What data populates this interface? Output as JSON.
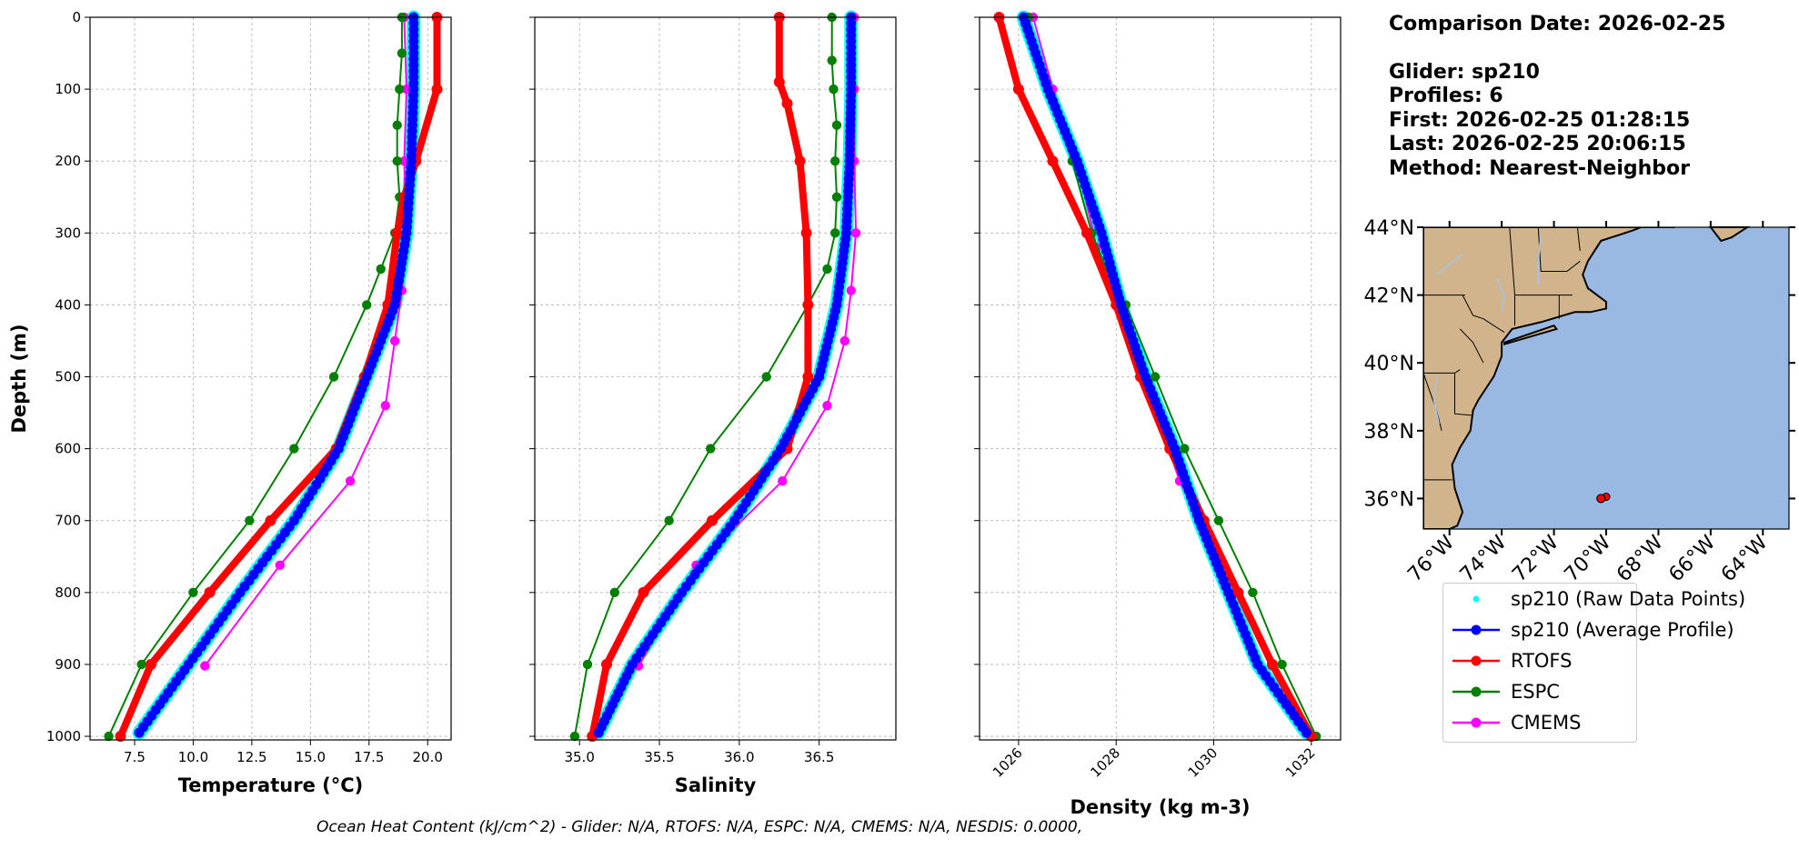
{
  "chart_data": [
    {
      "type": "line",
      "id": "temperature",
      "xlabel": "Temperature (°C)",
      "ylabel": "Depth (m)",
      "xlim": [
        5.6,
        21.0
      ],
      "ylim": [
        1005,
        0
      ],
      "xticks": [
        "7.5",
        "10.0",
        "12.5",
        "15.0",
        "17.5",
        "20.0"
      ],
      "xtick_values": [
        7.5,
        10.0,
        12.5,
        15.0,
        17.5,
        20.0
      ],
      "yticks": [
        "0",
        "100",
        "200",
        "300",
        "400",
        "500",
        "600",
        "700",
        "800",
        "900",
        "1000"
      ],
      "ytick_values": [
        0,
        100,
        200,
        300,
        400,
        500,
        600,
        700,
        800,
        900,
        1000
      ],
      "grid": true,
      "series": [
        {
          "name": "sp210 (Average Profile)",
          "color": "#0000ff",
          "style": "dense",
          "points": [
            [
              19.4,
              0
            ],
            [
              19.4,
              100
            ],
            [
              19.3,
              200
            ],
            [
              19.1,
              300
            ],
            [
              18.6,
              400
            ],
            [
              17.4,
              500
            ],
            [
              16.2,
              600
            ],
            [
              14.3,
              700
            ],
            [
              12.0,
              800
            ],
            [
              9.8,
              900
            ],
            [
              7.7,
              995
            ]
          ]
        },
        {
          "name": "RTOFS",
          "color": "#ff0000",
          "style": "thick",
          "points": [
            [
              20.4,
              0
            ],
            [
              20.4,
              100
            ],
            [
              19.5,
              200
            ],
            [
              19.0,
              250
            ],
            [
              18.7,
              300
            ],
            [
              18.3,
              400
            ],
            [
              17.3,
              500
            ],
            [
              16.1,
              600
            ],
            [
              13.3,
              700
            ],
            [
              10.7,
              800
            ],
            [
              8.2,
              900
            ],
            [
              6.9,
              1000
            ]
          ]
        },
        {
          "name": "ESPC",
          "color": "#008000",
          "style": "marker",
          "points": [
            [
              18.9,
              0
            ],
            [
              18.9,
              50
            ],
            [
              18.8,
              100
            ],
            [
              18.7,
              150
            ],
            [
              18.7,
              200
            ],
            [
              18.8,
              250
            ],
            [
              18.6,
              300
            ],
            [
              18.0,
              350
            ],
            [
              17.4,
              400
            ],
            [
              16.0,
              500
            ],
            [
              14.3,
              600
            ],
            [
              12.4,
              700
            ],
            [
              10.0,
              800
            ],
            [
              7.8,
              900
            ],
            [
              6.4,
              1000
            ]
          ]
        },
        {
          "name": "CMEMS",
          "color": "#ff00ff",
          "style": "marker",
          "points": [
            [
              19.0,
              0
            ],
            [
              19.1,
              100
            ],
            [
              19.0,
              200
            ],
            [
              19.1,
              300
            ],
            [
              18.9,
              380
            ],
            [
              18.6,
              450
            ],
            [
              18.2,
              540
            ],
            [
              16.7,
              645
            ],
            [
              13.7,
              762
            ],
            [
              10.5,
              902
            ]
          ]
        }
      ]
    },
    {
      "type": "line",
      "id": "salinity",
      "xlabel": "Salinity",
      "xlim": [
        34.72,
        36.98
      ],
      "ylim": [
        1005,
        0
      ],
      "xticks": [
        "35.0",
        "35.5",
        "36.0",
        "36.5"
      ],
      "xtick_values": [
        35.0,
        35.5,
        36.0,
        36.5
      ],
      "grid": true,
      "series": [
        {
          "name": "sp210 (Average Profile)",
          "color": "#0000ff",
          "style": "dense",
          "points": [
            [
              36.7,
              0
            ],
            [
              36.7,
              100
            ],
            [
              36.69,
              200
            ],
            [
              36.67,
              300
            ],
            [
              36.61,
              400
            ],
            [
              36.5,
              500
            ],
            [
              36.26,
              600
            ],
            [
              35.97,
              700
            ],
            [
              35.64,
              800
            ],
            [
              35.33,
              900
            ],
            [
              35.12,
              995
            ]
          ]
        },
        {
          "name": "RTOFS",
          "color": "#ff0000",
          "style": "thick",
          "points": [
            [
              36.25,
              0
            ],
            [
              36.25,
              90
            ],
            [
              36.3,
              120
            ],
            [
              36.38,
              200
            ],
            [
              36.42,
              300
            ],
            [
              36.43,
              400
            ],
            [
              36.43,
              500
            ],
            [
              36.3,
              600
            ],
            [
              35.83,
              700
            ],
            [
              35.4,
              800
            ],
            [
              35.17,
              900
            ],
            [
              35.08,
              1000
            ]
          ]
        },
        {
          "name": "ESPC",
          "color": "#008000",
          "style": "marker",
          "points": [
            [
              36.58,
              0
            ],
            [
              36.58,
              60
            ],
            [
              36.59,
              100
            ],
            [
              36.61,
              150
            ],
            [
              36.6,
              200
            ],
            [
              36.61,
              250
            ],
            [
              36.6,
              300
            ],
            [
              36.55,
              350
            ],
            [
              36.43,
              400
            ],
            [
              36.17,
              500
            ],
            [
              35.82,
              600
            ],
            [
              35.56,
              700
            ],
            [
              35.22,
              800
            ],
            [
              35.05,
              900
            ],
            [
              34.97,
              1000
            ]
          ]
        },
        {
          "name": "CMEMS",
          "color": "#ff00ff",
          "style": "marker",
          "points": [
            [
              36.72,
              0
            ],
            [
              36.72,
              100
            ],
            [
              36.72,
              200
            ],
            [
              36.73,
              300
            ],
            [
              36.7,
              380
            ],
            [
              36.66,
              450
            ],
            [
              36.55,
              540
            ],
            [
              36.27,
              645
            ],
            [
              35.73,
              762
            ],
            [
              35.37,
              902
            ]
          ]
        }
      ]
    },
    {
      "type": "line",
      "id": "density",
      "xlabel": "Density (kg m-3)",
      "xlim": [
        1025.2,
        1032.6
      ],
      "ylim": [
        1005,
        0
      ],
      "xticks": [
        "1026",
        "1028",
        "1030",
        "1032"
      ],
      "xtick_values": [
        1026,
        1028,
        1030,
        1032
      ],
      "grid": true,
      "series": [
        {
          "name": "sp210 (Average Profile)",
          "color": "#0000ff",
          "style": "dense",
          "points": [
            [
              1026.1,
              0
            ],
            [
              1026.6,
              100
            ],
            [
              1027.2,
              200
            ],
            [
              1027.7,
              300
            ],
            [
              1028.1,
              400
            ],
            [
              1028.6,
              500
            ],
            [
              1029.2,
              600
            ],
            [
              1029.7,
              700
            ],
            [
              1030.3,
              800
            ],
            [
              1030.9,
              900
            ],
            [
              1031.9,
              995
            ]
          ]
        },
        {
          "name": "RTOFS",
          "color": "#ff0000",
          "style": "thick",
          "points": [
            [
              1025.6,
              0
            ],
            [
              1026.0,
              100
            ],
            [
              1026.7,
              200
            ],
            [
              1027.4,
              300
            ],
            [
              1028.0,
              400
            ],
            [
              1028.5,
              500
            ],
            [
              1029.1,
              600
            ],
            [
              1029.8,
              700
            ],
            [
              1030.5,
              800
            ],
            [
              1031.2,
              900
            ],
            [
              1032.0,
              1000
            ]
          ]
        },
        {
          "name": "ESPC",
          "color": "#008000",
          "style": "marker",
          "points": [
            [
              1026.2,
              0
            ],
            [
              1026.6,
              100
            ],
            [
              1027.1,
              200
            ],
            [
              1027.5,
              300
            ],
            [
              1027.8,
              350
            ],
            [
              1028.2,
              400
            ],
            [
              1028.8,
              500
            ],
            [
              1029.4,
              600
            ],
            [
              1030.1,
              700
            ],
            [
              1030.8,
              800
            ],
            [
              1031.4,
              900
            ],
            [
              1032.1,
              1000
            ]
          ]
        },
        {
          "name": "CMEMS",
          "color": "#ff00ff",
          "style": "marker",
          "points": [
            [
              1026.3,
              0
            ],
            [
              1026.7,
              100
            ],
            [
              1027.2,
              200
            ],
            [
              1027.6,
              320
            ],
            [
              1028.0,
              400
            ],
            [
              1028.3,
              450
            ],
            [
              1028.8,
              540
            ],
            [
              1029.3,
              645
            ],
            [
              1030.2,
              762
            ],
            [
              1031.2,
              902
            ]
          ]
        }
      ]
    }
  ],
  "info": {
    "comparison_date": "Comparison Date: 2026-02-25",
    "glider": "Glider: sp210",
    "profiles": "Profiles: 6",
    "first": "First: 2026-02-25 01:28:15",
    "last": "Last: 2026-02-25 20:06:15",
    "method": "Method: Nearest-Neighbor"
  },
  "map": {
    "lat_labels": [
      "44°N",
      "42°N",
      "40°N",
      "38°N",
      "36°N"
    ],
    "lat_values": [
      44,
      42,
      40,
      38,
      36
    ],
    "lon_labels": [
      "76°W",
      "74°W",
      "72°W",
      "70°W",
      "68°W",
      "66°W",
      "64°W"
    ],
    "lon_values": [
      -76,
      -74,
      -72,
      -70,
      -68,
      -66,
      -64
    ],
    "lon_range": [
      -77.0,
      -63.0
    ],
    "lat_range": [
      35.1,
      44.0
    ],
    "land_color": "#d2b48c",
    "ocean_color": "#99b8e2",
    "glider_position": {
      "lon": -70.2,
      "lat": 36.0
    }
  },
  "legend": [
    {
      "label": "sp210 (Raw Data Points)",
      "color": "#00ffff",
      "marker": "dot"
    },
    {
      "label": "sp210 (Average Profile)",
      "color": "#0000ff",
      "marker": "line"
    },
    {
      "label": "RTOFS",
      "color": "#ff0000",
      "marker": "line"
    },
    {
      "label": "ESPC",
      "color": "#008000",
      "marker": "line"
    },
    {
      "label": "CMEMS",
      "color": "#ff00ff",
      "marker": "line"
    }
  ],
  "footer": "Ocean Heat Content (kJ/cm^2) - Glider: N/A,  RTOFS: N/A,  ESPC: N/A,  CMEMS: N/A,  NESDIS: 0.0000,"
}
